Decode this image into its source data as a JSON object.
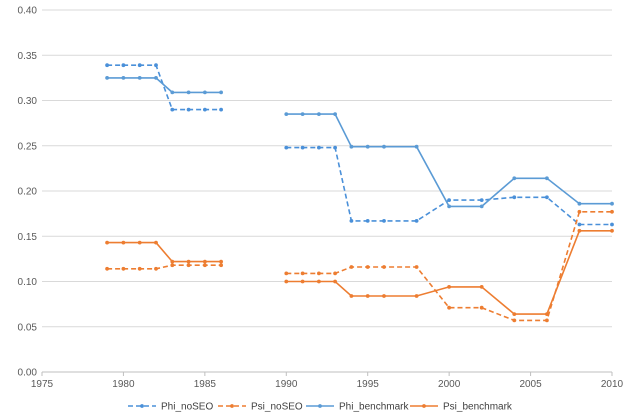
{
  "chart_data": {
    "type": "line",
    "title": "",
    "xlabel": "",
    "ylabel": "",
    "xlim": [
      1975,
      2010
    ],
    "ylim": [
      0,
      0.4
    ],
    "xticks": [
      "1975",
      "1980",
      "1985",
      "1990",
      "1995",
      "2000",
      "2005",
      "2010"
    ],
    "yticks": [
      "0.00",
      "0.05",
      "0.10",
      "0.15",
      "0.20",
      "0.25",
      "0.30",
      "0.35",
      "0.40"
    ],
    "grid": "horizontal",
    "legend_position": "bottom",
    "series": [
      {
        "name": "Phi_noSEO",
        "color": "#4a90d9",
        "dashed": true,
        "segments": [
          [
            [
              1979,
              0.339
            ],
            [
              1980,
              0.339
            ],
            [
              1981,
              0.339
            ],
            [
              1982,
              0.339
            ],
            [
              1983,
              0.29
            ],
            [
              1984,
              0.29
            ],
            [
              1985,
              0.29
            ],
            [
              1986,
              0.29
            ]
          ],
          [
            [
              1990,
              0.248
            ],
            [
              1991,
              0.248
            ],
            [
              1992,
              0.248
            ],
            [
              1993,
              0.248
            ],
            [
              1994,
              0.167
            ],
            [
              1995,
              0.167
            ],
            [
              1996,
              0.167
            ],
            [
              1998,
              0.167
            ],
            [
              2000,
              0.19
            ],
            [
              2002,
              0.19
            ],
            [
              2004,
              0.193
            ],
            [
              2006,
              0.193
            ],
            [
              2008,
              0.163
            ],
            [
              2010,
              0.163
            ]
          ]
        ]
      },
      {
        "name": "Psi_noSEO",
        "color": "#ed7d31",
        "dashed": true,
        "segments": [
          [
            [
              1979,
              0.114
            ],
            [
              1980,
              0.114
            ],
            [
              1981,
              0.114
            ],
            [
              1982,
              0.114
            ],
            [
              1983,
              0.118
            ],
            [
              1984,
              0.118
            ],
            [
              1985,
              0.118
            ],
            [
              1986,
              0.118
            ]
          ],
          [
            [
              1990,
              0.109
            ],
            [
              1991,
              0.109
            ],
            [
              1992,
              0.109
            ],
            [
              1993,
              0.109
            ],
            [
              1994,
              0.116
            ],
            [
              1995,
              0.116
            ],
            [
              1996,
              0.116
            ],
            [
              1998,
              0.116
            ],
            [
              2000,
              0.071
            ],
            [
              2002,
              0.071
            ],
            [
              2004,
              0.057
            ],
            [
              2006,
              0.057
            ],
            [
              2008,
              0.177
            ],
            [
              2010,
              0.177
            ]
          ]
        ]
      },
      {
        "name": "Phi_benchmark",
        "color": "#5b9bd5",
        "dashed": false,
        "segments": [
          [
            [
              1979,
              0.325
            ],
            [
              1980,
              0.325
            ],
            [
              1981,
              0.325
            ],
            [
              1982,
              0.325
            ],
            [
              1983,
              0.309
            ],
            [
              1984,
              0.309
            ],
            [
              1985,
              0.309
            ],
            [
              1986,
              0.309
            ]
          ],
          [
            [
              1990,
              0.285
            ],
            [
              1991,
              0.285
            ],
            [
              1992,
              0.285
            ],
            [
              1993,
              0.285
            ],
            [
              1994,
              0.249
            ],
            [
              1995,
              0.249
            ],
            [
              1996,
              0.249
            ],
            [
              1998,
              0.249
            ],
            [
              2000,
              0.183
            ],
            [
              2002,
              0.183
            ],
            [
              2004,
              0.214
            ],
            [
              2006,
              0.214
            ],
            [
              2008,
              0.186
            ],
            [
              2010,
              0.186
            ]
          ]
        ]
      },
      {
        "name": "Psi_benchmark",
        "color": "#ed7d31",
        "dashed": false,
        "segments": [
          [
            [
              1979,
              0.143
            ],
            [
              1980,
              0.143
            ],
            [
              1981,
              0.143
            ],
            [
              1982,
              0.143
            ],
            [
              1983,
              0.122
            ],
            [
              1984,
              0.122
            ],
            [
              1985,
              0.122
            ],
            [
              1986,
              0.122
            ]
          ],
          [
            [
              1990,
              0.1
            ],
            [
              1991,
              0.1
            ],
            [
              1992,
              0.1
            ],
            [
              1993,
              0.1
            ],
            [
              1994,
              0.084
            ],
            [
              1995,
              0.084
            ],
            [
              1996,
              0.084
            ],
            [
              1998,
              0.084
            ],
            [
              2000,
              0.094
            ],
            [
              2002,
              0.094
            ],
            [
              2004,
              0.064
            ],
            [
              2006,
              0.064
            ],
            [
              2008,
              0.156
            ],
            [
              2010,
              0.156
            ]
          ]
        ]
      }
    ]
  }
}
